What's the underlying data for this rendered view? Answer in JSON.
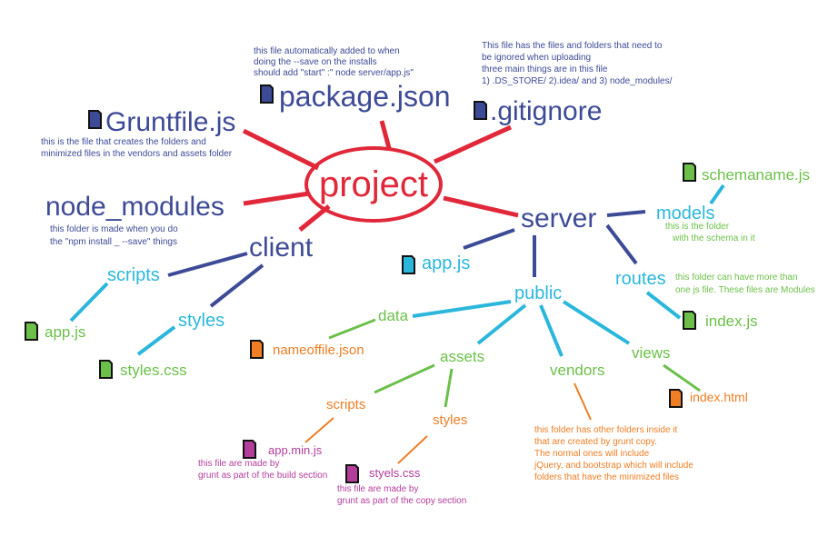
{
  "colors": {
    "red": "#e0283a",
    "navy": "#3d4a96",
    "cyan": "#2bb7dc",
    "green": "#6cc04a",
    "orange": "#ef7e24",
    "magenta": "#b33d9b",
    "icon_navy": "#3d4a96",
    "icon_cyan": "#2bb7dc",
    "icon_green": "#6cc04a",
    "icon_orange": "#ef7e24",
    "icon_magenta": "#b33d9b"
  },
  "nodes": {
    "project": "project",
    "package_json": "package.json",
    "gruntfile": "Gruntfile.js",
    "gitignore": ".gitignore",
    "node_modules": "node_modules",
    "client": "client",
    "server": "server",
    "models": "models",
    "schemaname": "schemaname.js",
    "routes": "routes",
    "index_js": "index.js",
    "server_app_js": "app.js",
    "public": "public",
    "data": "data",
    "nameoffile": "nameoffile.json",
    "assets": "assets",
    "vendors": "vendors",
    "views": "views",
    "index_html": "index.html",
    "client_scripts": "scripts",
    "client_app_js": "app.js",
    "client_styles": "styles",
    "styles_css": "styles.css",
    "assets_scripts": "scripts",
    "app_min_js": "app.min.js",
    "assets_styles": "styles",
    "styels_css": "styels.css"
  },
  "notes": {
    "package": [
      "this file automatically added to  when",
      "doing the --save on the installs",
      "should add \"start\" :\" node server/app.js\""
    ],
    "gitignore": [
      "This file has the files and folders that need to",
      "be ignored when uploading",
      "three main things are in this file",
      "1) .DS_STORE/ 2).idea/ and 3) node_modules/"
    ],
    "gruntfile": [
      "this is the file that creates the folders and",
      "minimized files in the vendors and assets folder"
    ],
    "node_modules": [
      "this folder is made when you do",
      "the \"npm install _ --save\" things"
    ],
    "models": [
      "this is the folder",
      "with the schema in it"
    ],
    "routes": [
      "this folder can have more than",
      "one js file.  These files are Modules"
    ],
    "vendors": [
      "this folder has other folders inside it",
      "that are created by grunt copy.",
      "The normal ones will include",
      "jQuery, and bootstrap which will include",
      "folders that have the minimized files"
    ],
    "app_min": [
      "this file are made by",
      "grunt as part of the build section"
    ],
    "styels": [
      "this file are made by",
      "grunt as part of the copy section"
    ]
  }
}
